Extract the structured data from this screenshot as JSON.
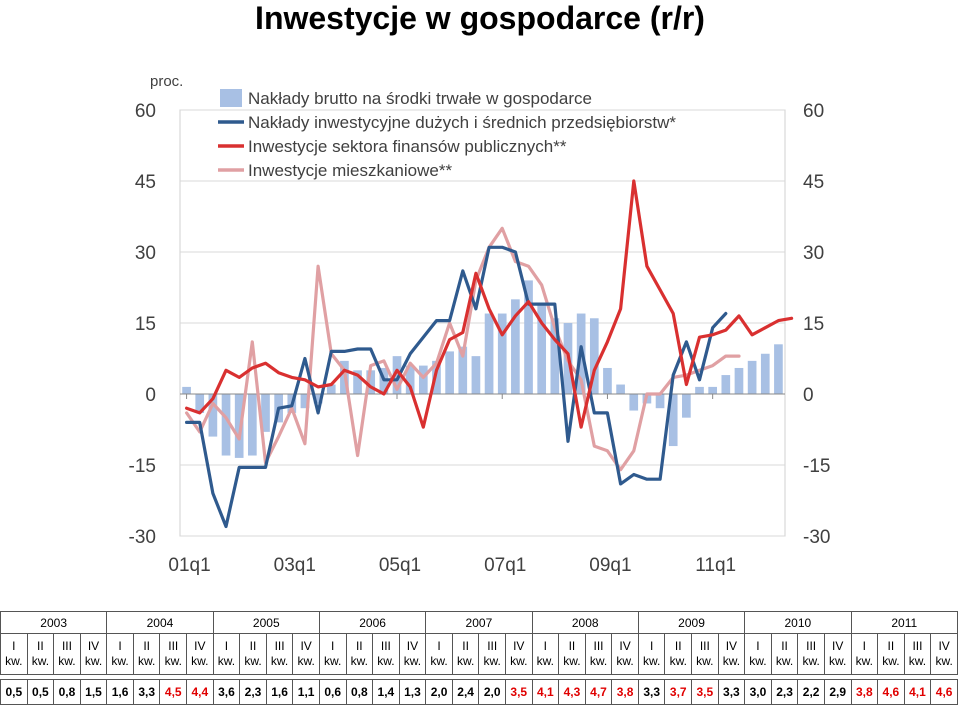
{
  "title": "Inwestycje w gospodarce (r/r)",
  "chart_data": {
    "type": "bar+line",
    "unit_label": "proc.",
    "ylim": [
      -30,
      60
    ],
    "yticks": [
      60,
      45,
      30,
      15,
      0,
      -15,
      -30
    ],
    "x_tick_labels": [
      "01q1",
      "03q1",
      "05q1",
      "07q1",
      "09q1",
      "11q1"
    ],
    "legend_position": "top",
    "series": [
      {
        "name": "Nakłady brutto na środki trwałe w gospodarce",
        "kind": "bar",
        "color": "#a8c0e4",
        "values": [
          1.5,
          -4,
          -9,
          -13,
          -13.5,
          -13,
          -8,
          -6,
          -4,
          -3,
          -2,
          2,
          7,
          5,
          5,
          5.5,
          8,
          6,
          6,
          7,
          9,
          10,
          8,
          17,
          17,
          20,
          24,
          19,
          16,
          15,
          17,
          16,
          5.5,
          2,
          -3.5,
          -2,
          -3,
          -11,
          -5,
          1.5,
          1.5,
          4,
          5.5,
          7,
          8.5,
          10.5
        ]
      },
      {
        "name": "Nakłady inwestycyjne dużych i średnich przedsiębiorstw*",
        "kind": "line",
        "color": "#2f5a8e",
        "values": [
          -6,
          -6,
          -21,
          -28,
          -15.5,
          -15.5,
          -15.5,
          -3,
          -2.5,
          7.5,
          -4,
          9,
          9,
          9.5,
          9.5,
          3,
          3,
          8.5,
          12,
          15.5,
          15.5,
          26,
          18,
          31,
          31,
          30,
          19,
          19,
          19,
          -10,
          10,
          -4,
          -4,
          -19,
          -17,
          -18,
          -18,
          4,
          11,
          3,
          14,
          17
        ]
      },
      {
        "name": "Inwestycje sektora finansów publicznych**",
        "kind": "line",
        "color": "#d93030",
        "values": [
          -3,
          -4,
          -1,
          5,
          3.5,
          5.5,
          6.5,
          4.5,
          3.5,
          3,
          1.5,
          2,
          5,
          4,
          1.5,
          0,
          5,
          1.5,
          -7,
          5,
          11.5,
          13,
          25.5,
          18,
          12.5,
          16.5,
          19.5,
          15,
          11.5,
          8.5,
          -7,
          5,
          11,
          18,
          45,
          27,
          22,
          17,
          2,
          12,
          12.5,
          13.5,
          16.5,
          12.5,
          14,
          15.5,
          16
        ]
      },
      {
        "name": "Inwestycje mieszkaniowe**",
        "kind": "line",
        "color": "#e0a0a3",
        "values": [
          -4,
          -8,
          -2,
          -5,
          -9.5,
          11,
          -14.5,
          -9,
          -3,
          -10.5,
          27,
          8.5,
          5,
          -13,
          6,
          7,
          1,
          6.5,
          3.5,
          6.5,
          15,
          8,
          24,
          31,
          35,
          28,
          27,
          23,
          14,
          7,
          3,
          -11,
          -12,
          -16,
          -12,
          0,
          0,
          3.5,
          4,
          5,
          6,
          8,
          8
        ]
      }
    ]
  },
  "table": {
    "years": [
      "2003",
      "2004",
      "2005",
      "2006",
      "2007",
      "2008",
      "2009",
      "2010",
      "2011"
    ],
    "quarters": [
      "I",
      "II",
      "III",
      "IV"
    ],
    "quarter_suffix": "kw.",
    "values": [
      "0,5",
      "0,5",
      "0,8",
      "1,5",
      "1,6",
      "3,3",
      "4,5",
      "4,4",
      "3,6",
      "2,3",
      "1,6",
      "1,1",
      "0,6",
      "0,8",
      "1,4",
      "1,3",
      "2,0",
      "2,4",
      "2,0",
      "3,5",
      "4,1",
      "4,3",
      "4,7",
      "3,8",
      "3,3",
      "3,7",
      "3,5",
      "3,3",
      "3,0",
      "2,3",
      "2,2",
      "2,9",
      "3,8",
      "4,6",
      "4,1",
      "4,6"
    ],
    "red_value_indices": [
      6,
      7,
      19,
      20,
      21,
      22,
      23,
      25,
      26,
      32,
      33,
      34,
      35
    ]
  }
}
